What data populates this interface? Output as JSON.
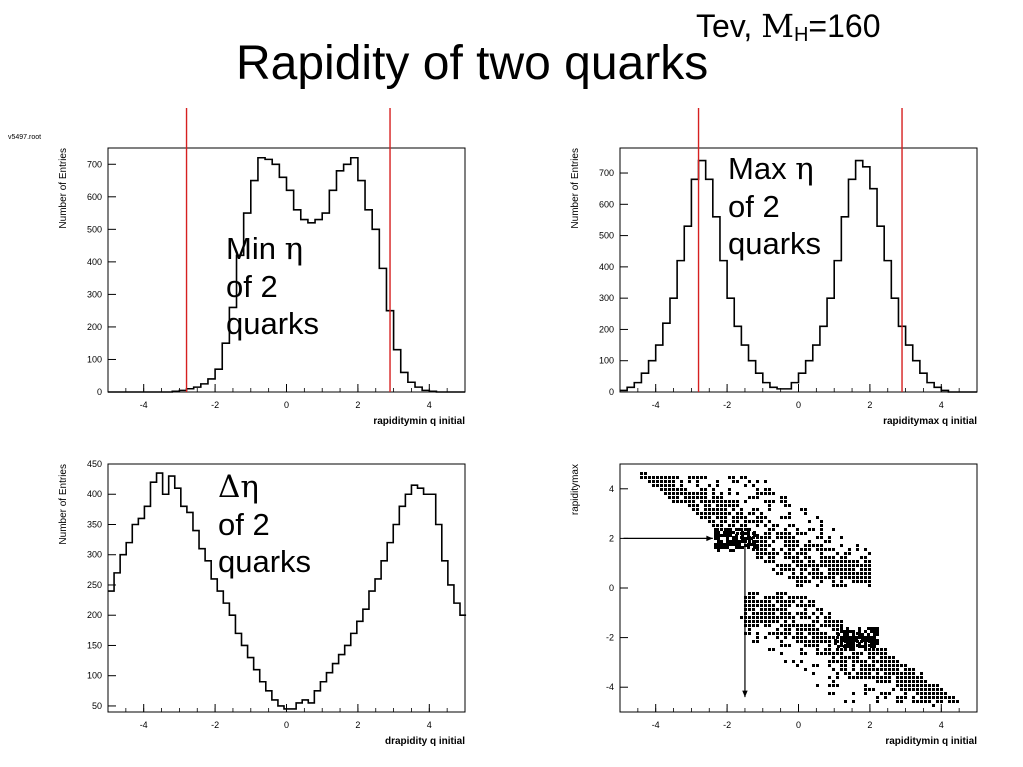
{
  "slide": {
    "title": "Rapidity of two quarks",
    "corner_note": {
      "prefix": "Tev, ",
      "symbol": "M",
      "subscript": "H",
      "suffix": "=160"
    },
    "file_label": "v5497.root"
  },
  "annotations": [
    {
      "id": "min-eta",
      "symbol": "η",
      "lines": [
        "Min ",
        "of 2",
        "quarks"
      ]
    },
    {
      "id": "max-eta",
      "symbol": "η",
      "lines": [
        "Max ",
        "of 2",
        "quarks"
      ]
    },
    {
      "id": "delta-eta",
      "symbol": "Δη",
      "lines": [
        "",
        "of 2",
        "quarks"
      ]
    }
  ],
  "chart_data": [
    {
      "type": "bar",
      "histogram": true,
      "xlabel": "rapiditymin q initial",
      "ylabel": "Number of Entries",
      "xlim": [
        -5,
        5
      ],
      "ylim": [
        0,
        750
      ],
      "xticks": [
        -4,
        -2,
        0,
        2,
        4
      ],
      "yticks": [
        0,
        100,
        200,
        300,
        400,
        500,
        600,
        700
      ],
      "bin_width": 0.2,
      "bin_start": -5,
      "values": [
        0,
        0,
        0,
        0,
        0,
        0,
        0,
        0,
        0,
        2,
        5,
        10,
        15,
        25,
        40,
        70,
        150,
        260,
        420,
        550,
        650,
        720,
        715,
        700,
        660,
        620,
        560,
        530,
        520,
        530,
        550,
        620,
        680,
        700,
        720,
        650,
        560,
        500,
        380,
        250,
        130,
        60,
        30,
        15,
        5,
        2,
        0,
        0,
        0,
        0
      ],
      "vlines": [
        -2.8,
        2.9
      ],
      "vline_color": "#d62020"
    },
    {
      "type": "bar",
      "histogram": true,
      "xlabel": "rapiditymax q initial",
      "ylabel": "Number of Entries",
      "xlim": [
        -5,
        5
      ],
      "ylim": [
        0,
        780
      ],
      "xticks": [
        -4,
        -2,
        0,
        2,
        4
      ],
      "yticks": [
        0,
        100,
        200,
        300,
        400,
        500,
        600,
        700
      ],
      "bin_width": 0.2,
      "bin_start": -5,
      "values": [
        5,
        15,
        30,
        60,
        100,
        150,
        220,
        300,
        420,
        530,
        680,
        740,
        680,
        560,
        420,
        300,
        210,
        150,
        100,
        60,
        30,
        15,
        10,
        10,
        30,
        60,
        100,
        150,
        210,
        300,
        420,
        560,
        680,
        740,
        720,
        650,
        530,
        420,
        300,
        210,
        150,
        100,
        60,
        30,
        15,
        5,
        0,
        0,
        0,
        0
      ],
      "vlines": [
        -2.8,
        2.9
      ],
      "vline_color": "#d62020"
    },
    {
      "type": "bar",
      "histogram": true,
      "xlabel": "drapidity q initial",
      "ylabel": "Number of Entries",
      "xlim": [
        -5,
        5
      ],
      "ylim": [
        40,
        450
      ],
      "xticks": [
        -4,
        -2,
        0,
        2,
        4
      ],
      "yticks": [
        50,
        100,
        150,
        200,
        250,
        300,
        350,
        400,
        450
      ],
      "bin_width": 0.2,
      "bin_start": -5,
      "values": [
        240,
        270,
        300,
        320,
        350,
        360,
        380,
        420,
        435,
        400,
        430,
        410,
        380,
        370,
        340,
        310,
        290,
        260,
        240,
        220,
        200,
        170,
        150,
        130,
        110,
        90,
        75,
        60,
        50,
        45,
        45,
        55,
        60,
        55,
        75,
        90,
        105,
        120,
        135,
        150,
        170,
        190,
        210,
        240,
        260,
        290,
        320,
        350,
        380,
        400,
        415,
        410,
        400,
        400,
        350,
        290,
        250,
        220,
        200
      ],
      "bin_width_override": 0.17
    },
    {
      "type": "scatter",
      "xlabel": "rapiditymin q initial",
      "ylabel": "rapiditymax",
      "xlim": [
        -5,
        5
      ],
      "ylim": [
        -5,
        5
      ],
      "xticks": [
        -4,
        -2,
        0,
        2,
        4
      ],
      "yticks": [
        -4,
        -2,
        0,
        2,
        4
      ],
      "description_regions": "two bands along y = -x",
      "arrows": [
        {
          "from": [
            -4.9,
            2.0
          ],
          "to": [
            -2.4,
            2.0
          ]
        },
        {
          "from": [
            -1.5,
            2.0
          ],
          "to": [
            -1.5,
            -4.4
          ]
        }
      ]
    }
  ],
  "colors": {
    "line": "#000000",
    "marker_line": "#d62020"
  }
}
